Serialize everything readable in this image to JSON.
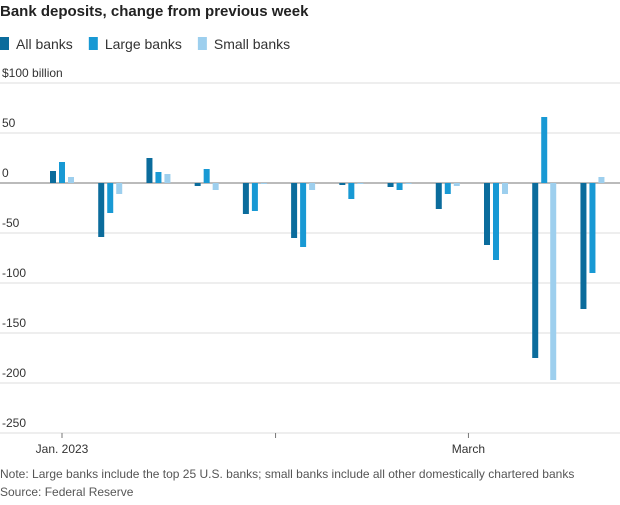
{
  "chart_data": {
    "type": "bar",
    "title": "Bank deposits, change from previous week",
    "note": "Note: Large banks include the top 25 U.S. banks; small banks include all other domestically chartered banks",
    "source": "Source: Federal Reserve",
    "x": [
      0,
      7,
      14,
      21,
      28,
      35,
      42,
      49,
      56,
      63,
      70,
      77
    ],
    "xlim": [
      -9,
      81
    ],
    "xticks": [
      {
        "value": 0,
        "label": "Jan. 2023"
      },
      {
        "value": 31,
        "label": null
      },
      {
        "value": 59,
        "label": "March"
      }
    ],
    "ylim": [
      -250,
      100
    ],
    "yticks": [
      {
        "value": 100,
        "label": "$100 billion"
      },
      50,
      0,
      -50,
      -100,
      -150,
      -200,
      -250
    ],
    "grid": true,
    "series": [
      {
        "name": "All banks",
        "color": "#0b6c9c",
        "values": [
          12,
          -54,
          25,
          -3,
          -31,
          -55,
          -2,
          -4,
          -26,
          -62,
          -175,
          -126
        ]
      },
      {
        "name": "Large banks",
        "color": "#1899d4",
        "values": [
          21,
          -30,
          11,
          14,
          -28,
          -64,
          -16,
          -7,
          -11,
          -77,
          66,
          -90
        ]
      },
      {
        "name": "Small banks",
        "color": "#9dcfee",
        "values": [
          6,
          -11,
          9,
          -7,
          -1,
          -7,
          -1,
          -1,
          -3,
          -11,
          -197,
          6
        ]
      }
    ]
  }
}
